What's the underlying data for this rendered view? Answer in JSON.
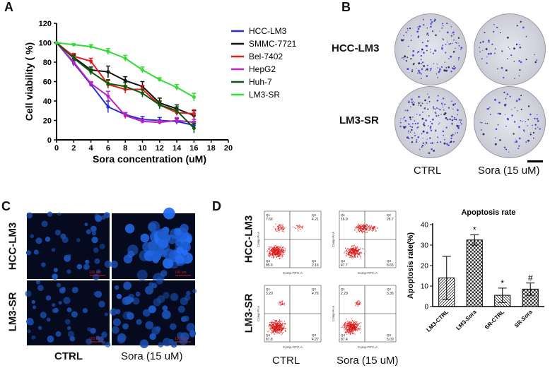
{
  "panels": {
    "a": {
      "letter": "A"
    },
    "b": {
      "letter": "B",
      "row_labels": [
        "HCC-LM3",
        "LM3-SR"
      ],
      "col_labels": [
        "CTRL",
        "Sora (15 uM)"
      ]
    },
    "c": {
      "letter": "C",
      "row_labels": [
        "HCC-LM3",
        "LM3-SR"
      ],
      "col_labels": [
        "CTRL",
        "Sora (15 uM)"
      ],
      "scale_text": "100 um"
    },
    "d": {
      "letter": "D",
      "row_labels": [
        "HCC-LM3",
        "LM3-SR"
      ],
      "col_labels": [
        "CTRL",
        "Sora (15 uM)"
      ],
      "flow_axes": {
        "x": "Comp-FITC-A",
        "y": "Comp-PI-A"
      },
      "flow_plots": [
        {
          "q1": "7.66",
          "q2": "4.21",
          "q3": "2.16",
          "q4": "85.6",
          "labels": [
            "Q1",
            "Q2",
            "Q3",
            "Q4"
          ]
        },
        {
          "q1": "16.9",
          "q2": "28.7",
          "q3": "6.65",
          "q4": "47.7",
          "labels": [
            "Q1",
            "Q2",
            "Q3",
            "Q4"
          ]
        },
        {
          "q1": "3.20",
          "q2": "4.76",
          "q3": "4.27",
          "q4": "87.8",
          "labels": [
            "Q1",
            "Q2",
            "Q3",
            "Q4"
          ]
        },
        {
          "q1": "2.29",
          "q2": "5.36",
          "q3": "5.09",
          "q4": "87.4",
          "labels": [
            "Q1",
            "Q2",
            "Q3",
            "Q4"
          ]
        }
      ]
    }
  },
  "chart_data": [
    {
      "type": "line",
      "title": "",
      "xlabel": "Sora concentration (uM)",
      "ylabel": "Cell viability ( %)",
      "xlim": [
        0,
        20
      ],
      "ylim": [
        0,
        120
      ],
      "xticks": [
        0,
        2,
        4,
        6,
        8,
        10,
        12,
        14,
        16,
        18,
        20
      ],
      "yticks": [
        0,
        20,
        40,
        60,
        80,
        100,
        120
      ],
      "x": [
        0,
        2,
        4,
        6,
        8,
        10,
        12,
        14,
        16
      ],
      "legend_position": "top-right",
      "series": [
        {
          "name": "HCC-LM3",
          "color": "#2b2bd6",
          "values": [
            100,
            79,
            57,
            34,
            26,
            21,
            20,
            19,
            15
          ],
          "errors": [
            0,
            3,
            2,
            6,
            2,
            3,
            3,
            3,
            4
          ]
        },
        {
          "name": "SMMC-7721",
          "color": "#111111",
          "values": [
            100,
            85,
            72,
            70,
            61,
            55,
            38,
            32,
            25
          ],
          "errors": [
            0,
            3,
            3,
            6,
            4,
            5,
            5,
            4,
            5
          ]
        },
        {
          "name": "Bel-7402",
          "color": "#e02020",
          "values": [
            100,
            86,
            81,
            57,
            52,
            52,
            36,
            28,
            27
          ],
          "errors": [
            0,
            3,
            3,
            4,
            4,
            4,
            4,
            3,
            4
          ]
        },
        {
          "name": "HepG2",
          "color": "#c020c0",
          "values": [
            100,
            80,
            58,
            45,
            25,
            19,
            18,
            20,
            18
          ],
          "errors": [
            0,
            3,
            2,
            5,
            3,
            2,
            2,
            3,
            3
          ]
        },
        {
          "name": "Huh-7",
          "color": "#0a5a0a",
          "values": [
            100,
            84,
            70,
            58,
            55,
            48,
            36,
            30,
            12
          ],
          "errors": [
            0,
            3,
            3,
            4,
            4,
            4,
            4,
            4,
            5
          ]
        },
        {
          "name": "LM3-SR",
          "color": "#33dd33",
          "values": [
            100,
            98,
            96,
            91,
            84,
            72,
            62,
            54,
            44
          ],
          "errors": [
            0,
            1,
            2,
            3,
            3,
            3,
            2,
            3,
            4
          ]
        }
      ]
    },
    {
      "type": "bar",
      "title": "Apoptosis rate",
      "xlabel": "",
      "ylabel": "Apoptosis rate(%)",
      "ylim": [
        0,
        40
      ],
      "yticks": [
        0,
        10,
        20,
        30,
        40
      ],
      "categories": [
        "LM3-CTRL",
        "LM3-Sora",
        "SR-CTRL",
        "SR-Sora"
      ],
      "values": [
        14,
        32.5,
        5.5,
        8.5
      ],
      "errors": [
        10.5,
        2.5,
        3.5,
        3
      ],
      "annotations": [
        "",
        "*",
        "*",
        "#"
      ]
    }
  ]
}
